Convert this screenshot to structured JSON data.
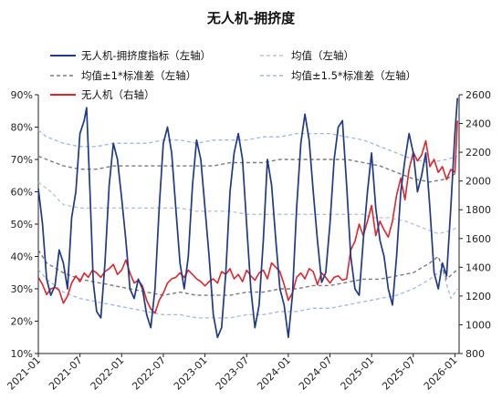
{
  "chart_data": {
    "type": "line",
    "title": "无人机-拥挤度",
    "x_ticks": [
      "2021-01",
      "2021-07",
      "2022-01",
      "2022-07",
      "2023-01",
      "2023-07",
      "2024-01",
      "2024-07",
      "2025-01",
      "2025-07",
      "2026-01"
    ],
    "y_left": {
      "min": 10,
      "max": 90,
      "step": 10,
      "unit": "%",
      "tick_labels": [
        "10%",
        "20%",
        "30%",
        "40%",
        "50%",
        "60%",
        "70%",
        "80%",
        "90%"
      ]
    },
    "y_right": {
      "min": 800,
      "max": 2600,
      "step": 200,
      "tick_labels": [
        "800",
        "1000",
        "1200",
        "1400",
        "1600",
        "1800",
        "2000",
        "2200",
        "2400",
        "2600"
      ]
    },
    "legend": [
      {
        "id": "crowding",
        "label": "无人机-拥挤度指标（左轴）",
        "color": "#1f3a8a",
        "style": "solid"
      },
      {
        "id": "mean",
        "label": "均值（左轴）",
        "color": "#b8c2d6",
        "style": "dashed"
      },
      {
        "id": "band1",
        "label": "均值±1*标准差（左轴）",
        "color": "#7a7a7a",
        "style": "dashed"
      },
      {
        "id": "band15",
        "label": "均值±1.5*标准差（左轴）",
        "color": "#9db8e6",
        "style": "dashed"
      },
      {
        "id": "price",
        "label": "无人机（右轴）",
        "color": "#e0262b",
        "style": "solid"
      }
    ],
    "series": {
      "crowding": [
        [
          2021.0,
          61
        ],
        [
          2021.05,
          50
        ],
        [
          2021.1,
          33
        ],
        [
          2021.15,
          28
        ],
        [
          2021.2,
          31
        ],
        [
          2021.25,
          42
        ],
        [
          2021.3,
          38
        ],
        [
          2021.35,
          30
        ],
        [
          2021.4,
          52
        ],
        [
          2021.45,
          60
        ],
        [
          2021.5,
          78
        ],
        [
          2021.55,
          82
        ],
        [
          2021.58,
          86
        ],
        [
          2021.62,
          60
        ],
        [
          2021.66,
          32
        ],
        [
          2021.7,
          23
        ],
        [
          2021.75,
          21
        ],
        [
          2021.8,
          38
        ],
        [
          2021.85,
          62
        ],
        [
          2021.9,
          75
        ],
        [
          2021.95,
          70
        ],
        [
          2022.0,
          58
        ],
        [
          2022.05,
          45
        ],
        [
          2022.1,
          30
        ],
        [
          2022.15,
          27
        ],
        [
          2022.2,
          33
        ],
        [
          2022.25,
          30
        ],
        [
          2022.3,
          22
        ],
        [
          2022.35,
          18
        ],
        [
          2022.4,
          30
        ],
        [
          2022.45,
          55
        ],
        [
          2022.5,
          75
        ],
        [
          2022.55,
          80
        ],
        [
          2022.6,
          72
        ],
        [
          2022.65,
          55
        ],
        [
          2022.7,
          38
        ],
        [
          2022.75,
          30
        ],
        [
          2022.8,
          40
        ],
        [
          2022.85,
          62
        ],
        [
          2022.9,
          76
        ],
        [
          2022.95,
          70
        ],
        [
          2023.0,
          55
        ],
        [
          2023.05,
          40
        ],
        [
          2023.1,
          22
        ],
        [
          2023.15,
          15
        ],
        [
          2023.2,
          18
        ],
        [
          2023.25,
          35
        ],
        [
          2023.3,
          60
        ],
        [
          2023.35,
          72
        ],
        [
          2023.4,
          78
        ],
        [
          2023.45,
          70
        ],
        [
          2023.5,
          50
        ],
        [
          2023.55,
          30
        ],
        [
          2023.6,
          18
        ],
        [
          2023.65,
          25
        ],
        [
          2023.7,
          45
        ],
        [
          2023.75,
          70
        ],
        [
          2023.8,
          62
        ],
        [
          2023.85,
          45
        ],
        [
          2023.9,
          30
        ],
        [
          2023.95,
          25
        ],
        [
          2024.0,
          15
        ],
        [
          2024.05,
          28
        ],
        [
          2024.1,
          55
        ],
        [
          2024.15,
          75
        ],
        [
          2024.2,
          84
        ],
        [
          2024.25,
          76
        ],
        [
          2024.3,
          60
        ],
        [
          2024.35,
          45
        ],
        [
          2024.4,
          32
        ],
        [
          2024.45,
          35
        ],
        [
          2024.5,
          50
        ],
        [
          2024.55,
          70
        ],
        [
          2024.6,
          80
        ],
        [
          2024.65,
          82
        ],
        [
          2024.7,
          62
        ],
        [
          2024.75,
          40
        ],
        [
          2024.8,
          30
        ],
        [
          2024.85,
          28
        ],
        [
          2024.9,
          45
        ],
        [
          2024.95,
          60
        ],
        [
          2025.0,
          72
        ],
        [
          2025.05,
          55
        ],
        [
          2025.1,
          45
        ],
        [
          2025.15,
          40
        ],
        [
          2025.2,
          30
        ],
        [
          2025.25,
          25
        ],
        [
          2025.3,
          40
        ],
        [
          2025.35,
          60
        ],
        [
          2025.4,
          70
        ],
        [
          2025.45,
          78
        ],
        [
          2025.5,
          72
        ],
        [
          2025.55,
          60
        ],
        [
          2025.6,
          65
        ],
        [
          2025.65,
          72
        ],
        [
          2025.7,
          55
        ],
        [
          2025.75,
          35
        ],
        [
          2025.8,
          30
        ],
        [
          2025.85,
          38
        ],
        [
          2025.9,
          34
        ],
        [
          2025.95,
          55
        ],
        [
          2026.0,
          78
        ],
        [
          2026.03,
          89
        ]
      ],
      "price": [
        [
          2021.0,
          1330
        ],
        [
          2021.05,
          1280
        ],
        [
          2021.1,
          1210
        ],
        [
          2021.15,
          1250
        ],
        [
          2021.2,
          1260
        ],
        [
          2021.25,
          1240
        ],
        [
          2021.3,
          1150
        ],
        [
          2021.35,
          1200
        ],
        [
          2021.4,
          1290
        ],
        [
          2021.45,
          1340
        ],
        [
          2021.5,
          1300
        ],
        [
          2021.55,
          1360
        ],
        [
          2021.6,
          1330
        ],
        [
          2021.65,
          1380
        ],
        [
          2021.7,
          1360
        ],
        [
          2021.75,
          1330
        ],
        [
          2021.8,
          1370
        ],
        [
          2021.85,
          1390
        ],
        [
          2021.9,
          1420
        ],
        [
          2021.95,
          1350
        ],
        [
          2022.0,
          1380
        ],
        [
          2022.05,
          1450
        ],
        [
          2022.1,
          1360
        ],
        [
          2022.15,
          1290
        ],
        [
          2022.2,
          1310
        ],
        [
          2022.25,
          1270
        ],
        [
          2022.3,
          1170
        ],
        [
          2022.35,
          1110
        ],
        [
          2022.4,
          1080
        ],
        [
          2022.45,
          1170
        ],
        [
          2022.5,
          1220
        ],
        [
          2022.55,
          1290
        ],
        [
          2022.6,
          1320
        ],
        [
          2022.65,
          1330
        ],
        [
          2022.7,
          1360
        ],
        [
          2022.75,
          1330
        ],
        [
          2022.8,
          1380
        ],
        [
          2022.85,
          1350
        ],
        [
          2022.9,
          1320
        ],
        [
          2022.95,
          1300
        ],
        [
          2023.0,
          1270
        ],
        [
          2023.05,
          1300
        ],
        [
          2023.1,
          1320
        ],
        [
          2023.15,
          1290
        ],
        [
          2023.2,
          1370
        ],
        [
          2023.25,
          1350
        ],
        [
          2023.3,
          1390
        ],
        [
          2023.35,
          1320
        ],
        [
          2023.4,
          1350
        ],
        [
          2023.45,
          1300
        ],
        [
          2023.5,
          1380
        ],
        [
          2023.55,
          1340
        ],
        [
          2023.6,
          1310
        ],
        [
          2023.65,
          1360
        ],
        [
          2023.7,
          1380
        ],
        [
          2023.75,
          1320
        ],
        [
          2023.8,
          1430
        ],
        [
          2023.85,
          1400
        ],
        [
          2023.9,
          1370
        ],
        [
          2023.95,
          1280
        ],
        [
          2024.0,
          1170
        ],
        [
          2024.05,
          1220
        ],
        [
          2024.1,
          1330
        ],
        [
          2024.15,
          1360
        ],
        [
          2024.2,
          1320
        ],
        [
          2024.25,
          1390
        ],
        [
          2024.3,
          1370
        ],
        [
          2024.35,
          1280
        ],
        [
          2024.4,
          1360
        ],
        [
          2024.45,
          1330
        ],
        [
          2024.5,
          1290
        ],
        [
          2024.55,
          1330
        ],
        [
          2024.6,
          1340
        ],
        [
          2024.65,
          1310
        ],
        [
          2024.7,
          1320
        ],
        [
          2024.75,
          1520
        ],
        [
          2024.8,
          1580
        ],
        [
          2024.85,
          1700
        ],
        [
          2024.9,
          1620
        ],
        [
          2024.95,
          1720
        ],
        [
          2025.0,
          1830
        ],
        [
          2025.05,
          1620
        ],
        [
          2025.1,
          1720
        ],
        [
          2025.15,
          1660
        ],
        [
          2025.2,
          1610
        ],
        [
          2025.25,
          1720
        ],
        [
          2025.3,
          1900
        ],
        [
          2025.35,
          2020
        ],
        [
          2025.4,
          1870
        ],
        [
          2025.45,
          2080
        ],
        [
          2025.5,
          2200
        ],
        [
          2025.55,
          2140
        ],
        [
          2025.6,
          2180
        ],
        [
          2025.65,
          2280
        ],
        [
          2025.7,
          2100
        ],
        [
          2025.75,
          2150
        ],
        [
          2025.8,
          2060
        ],
        [
          2025.85,
          2100
        ],
        [
          2025.9,
          2010
        ],
        [
          2025.95,
          2080
        ],
        [
          2026.0,
          2060
        ],
        [
          2026.03,
          2420
        ]
      ],
      "mean": [
        [
          2021.0,
          63
        ],
        [
          2021.15,
          60
        ],
        [
          2021.3,
          56
        ],
        [
          2021.5,
          55
        ],
        [
          2021.7,
          55
        ],
        [
          2021.9,
          55
        ],
        [
          2022.1,
          55
        ],
        [
          2022.3,
          55
        ],
        [
          2022.5,
          55
        ],
        [
          2022.7,
          55
        ],
        [
          2022.9,
          54
        ],
        [
          2023.1,
          54
        ],
        [
          2023.3,
          54
        ],
        [
          2023.5,
          53
        ],
        [
          2023.7,
          53
        ],
        [
          2023.9,
          53
        ],
        [
          2024.1,
          53
        ],
        [
          2024.3,
          53
        ],
        [
          2024.5,
          53
        ],
        [
          2024.7,
          53
        ],
        [
          2024.9,
          53
        ],
        [
          2025.0,
          52
        ],
        [
          2025.2,
          52
        ],
        [
          2025.4,
          51
        ],
        [
          2025.6,
          49
        ],
        [
          2025.8,
          47
        ],
        [
          2025.95,
          48
        ],
        [
          2026.03,
          49
        ]
      ],
      "band1_upper": [
        [
          2021.0,
          71
        ],
        [
          2021.1,
          70
        ],
        [
          2021.3,
          68
        ],
        [
          2021.5,
          67
        ],
        [
          2021.7,
          67
        ],
        [
          2021.9,
          68
        ],
        [
          2022.1,
          68
        ],
        [
          2022.3,
          68
        ],
        [
          2022.5,
          68
        ],
        [
          2022.7,
          68
        ],
        [
          2022.9,
          68
        ],
        [
          2023.1,
          68
        ],
        [
          2023.3,
          69
        ],
        [
          2023.5,
          69
        ],
        [
          2023.7,
          69
        ],
        [
          2023.9,
          70
        ],
        [
          2024.1,
          70
        ],
        [
          2024.3,
          70
        ],
        [
          2024.5,
          70
        ],
        [
          2024.7,
          70
        ],
        [
          2024.9,
          69
        ],
        [
          2025.1,
          68
        ],
        [
          2025.3,
          66
        ],
        [
          2025.5,
          64
        ],
        [
          2025.7,
          63
        ],
        [
          2025.9,
          64
        ],
        [
          2026.03,
          66
        ]
      ],
      "band1_lower": [
        [
          2021.0,
          42
        ],
        [
          2021.1,
          38
        ],
        [
          2021.3,
          35
        ],
        [
          2021.5,
          33
        ],
        [
          2021.7,
          32
        ],
        [
          2021.9,
          31
        ],
        [
          2022.1,
          30
        ],
        [
          2022.3,
          29
        ],
        [
          2022.5,
          28
        ],
        [
          2022.7,
          29
        ],
        [
          2022.9,
          28
        ],
        [
          2023.1,
          28
        ],
        [
          2023.3,
          28
        ],
        [
          2023.5,
          29
        ],
        [
          2023.7,
          29
        ],
        [
          2023.9,
          30
        ],
        [
          2024.1,
          30
        ],
        [
          2024.3,
          31
        ],
        [
          2024.5,
          31
        ],
        [
          2024.7,
          32
        ],
        [
          2024.9,
          33
        ],
        [
          2025.1,
          33
        ],
        [
          2025.3,
          34
        ],
        [
          2025.5,
          35
        ],
        [
          2025.7,
          38
        ],
        [
          2025.8,
          40
        ],
        [
          2025.9,
          33
        ],
        [
          2026.03,
          36
        ]
      ],
      "band15_upper": [
        [
          2021.0,
          79
        ],
        [
          2021.1,
          77
        ],
        [
          2021.3,
          75
        ],
        [
          2021.5,
          74
        ],
        [
          2021.7,
          74
        ],
        [
          2021.9,
          75
        ],
        [
          2022.1,
          75
        ],
        [
          2022.3,
          75
        ],
        [
          2022.5,
          76
        ],
        [
          2022.7,
          76
        ],
        [
          2022.9,
          75
        ],
        [
          2023.1,
          76
        ],
        [
          2023.3,
          76
        ],
        [
          2023.5,
          76
        ],
        [
          2023.7,
          77
        ],
        [
          2023.9,
          77
        ],
        [
          2024.1,
          78
        ],
        [
          2024.3,
          78
        ],
        [
          2024.5,
          78
        ],
        [
          2024.7,
          77
        ],
        [
          2024.9,
          76
        ],
        [
          2025.1,
          74
        ],
        [
          2025.3,
          72
        ],
        [
          2025.5,
          70
        ],
        [
          2025.7,
          69
        ],
        [
          2025.9,
          70
        ],
        [
          2026.03,
          71
        ]
      ],
      "band15_lower": [
        [
          2021.0,
          36
        ],
        [
          2021.1,
          33
        ],
        [
          2021.3,
          29
        ],
        [
          2021.5,
          27
        ],
        [
          2021.7,
          26
        ],
        [
          2021.9,
          25
        ],
        [
          2022.1,
          24
        ],
        [
          2022.3,
          23
        ],
        [
          2022.5,
          22
        ],
        [
          2022.7,
          22
        ],
        [
          2022.9,
          21
        ],
        [
          2023.1,
          21
        ],
        [
          2023.3,
          21
        ],
        [
          2023.5,
          22
        ],
        [
          2023.7,
          22
        ],
        [
          2023.9,
          23
        ],
        [
          2024.1,
          23
        ],
        [
          2024.3,
          24
        ],
        [
          2024.5,
          24
        ],
        [
          2024.7,
          25
        ],
        [
          2024.9,
          26
        ],
        [
          2025.1,
          27
        ],
        [
          2025.3,
          28
        ],
        [
          2025.5,
          30
        ],
        [
          2025.7,
          33
        ],
        [
          2025.85,
          36
        ],
        [
          2025.95,
          27
        ],
        [
          2026.03,
          30
        ]
      ]
    },
    "x_range": [
      2021.0,
      2026.05
    ],
    "grid": false,
    "legend_position": "top"
  }
}
